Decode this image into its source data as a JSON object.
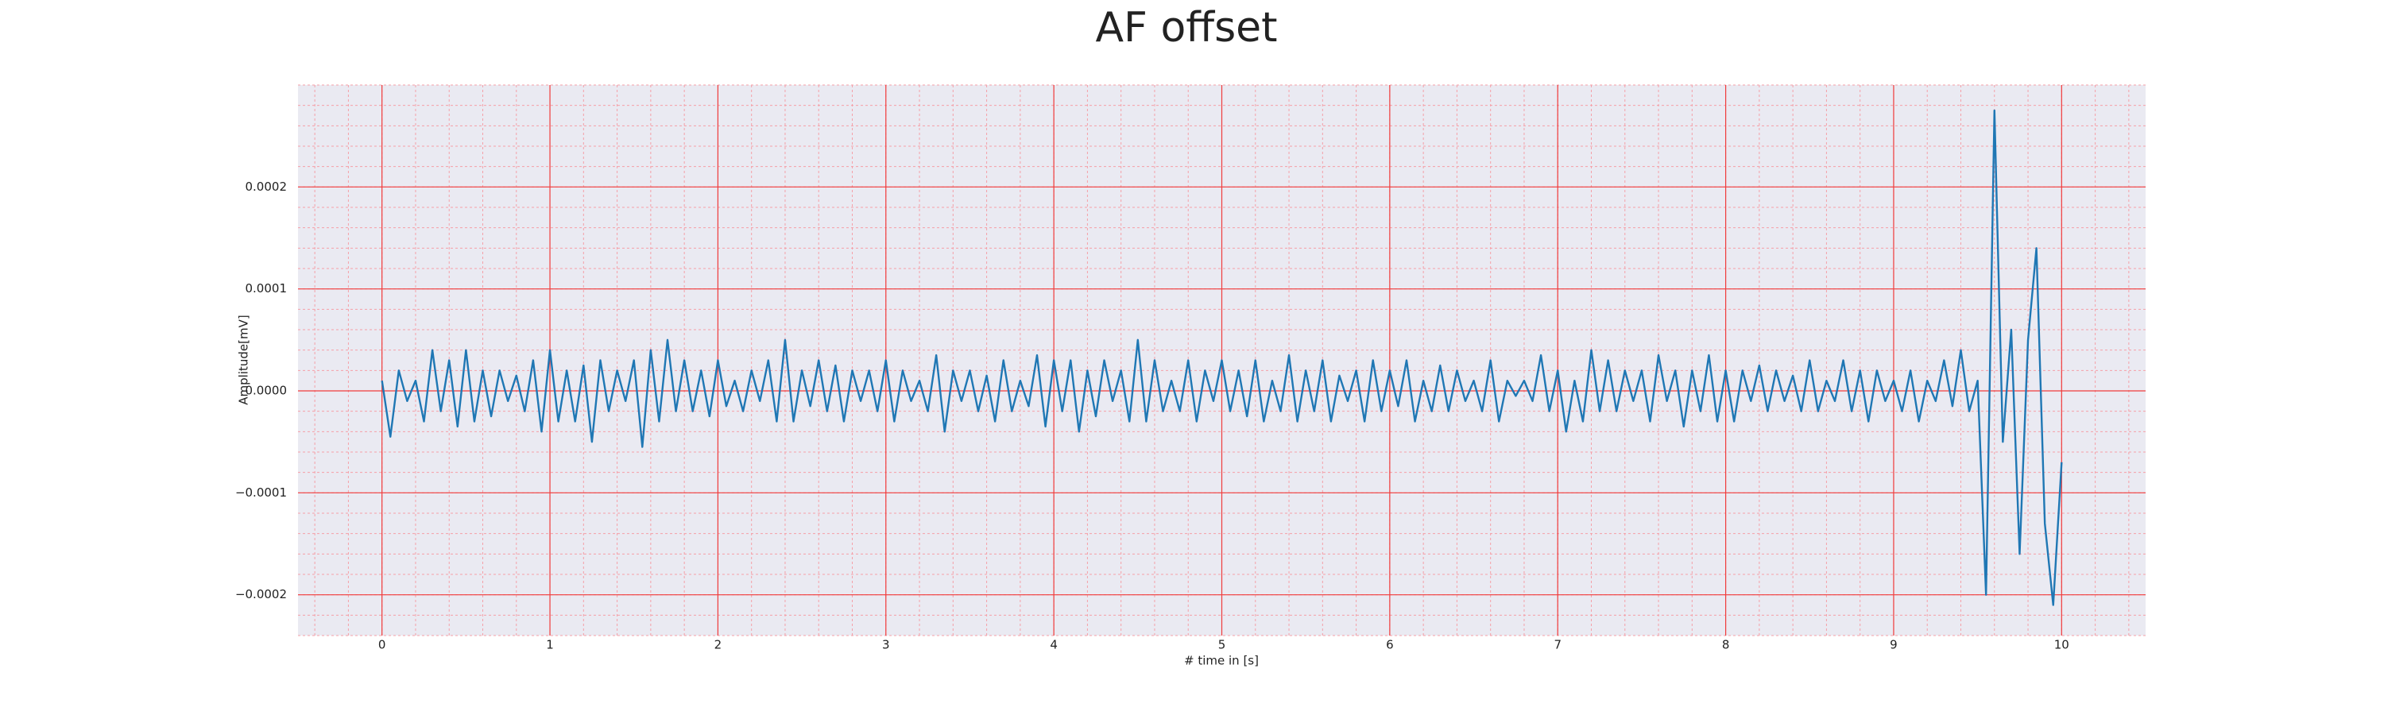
{
  "chart_data": {
    "type": "line",
    "title": "AF offset",
    "xlabel": "# time in [s]",
    "ylabel": "Amplitude[mV]",
    "xlim": [
      -0.5,
      10.5
    ],
    "ylim": [
      -0.00024,
      0.0003
    ],
    "xticks": [
      0,
      1,
      2,
      3,
      4,
      5,
      6,
      7,
      8,
      9,
      10
    ],
    "yticks": [
      {
        "value": -0.0002,
        "label": "−0.0002"
      },
      {
        "value": -0.0001,
        "label": "−0.0001"
      },
      {
        "value": 0,
        "label": "0.0000"
      },
      0.0001,
      0.0002
    ],
    "grid": true,
    "minor_grid": true,
    "x": [
      0,
      0.05,
      0.1,
      0.15,
      0.2,
      0.25,
      0.3,
      0.35,
      0.4,
      0.45,
      0.5,
      0.55,
      0.6,
      0.65,
      0.7,
      0.75,
      0.8,
      0.85,
      0.9,
      0.95,
      1,
      1.05,
      1.1,
      1.15,
      1.2,
      1.25,
      1.3,
      1.35,
      1.4,
      1.45,
      1.5,
      1.55,
      1.6,
      1.65,
      1.7,
      1.75,
      1.8,
      1.85,
      1.9,
      1.95,
      2,
      2.05,
      2.1,
      2.15,
      2.2,
      2.25,
      2.3,
      2.35,
      2.4,
      2.45,
      2.5,
      2.55,
      2.6,
      2.65,
      2.7,
      2.75,
      2.8,
      2.85,
      2.9,
      2.95,
      3,
      3.05,
      3.1,
      3.15,
      3.2,
      3.25,
      3.3,
      3.35,
      3.4,
      3.45,
      3.5,
      3.55,
      3.6,
      3.65,
      3.7,
      3.75,
      3.8,
      3.85,
      3.9,
      3.95,
      4,
      4.05,
      4.1,
      4.15,
      4.2,
      4.25,
      4.3,
      4.35,
      4.4,
      4.45,
      4.5,
      4.55,
      4.6,
      4.65,
      4.7,
      4.75,
      4.8,
      4.85,
      4.9,
      4.95,
      5,
      5.05,
      5.1,
      5.15,
      5.2,
      5.25,
      5.3,
      5.35,
      5.4,
      5.45,
      5.5,
      5.55,
      5.6,
      5.65,
      5.7,
      5.75,
      5.8,
      5.85,
      5.9,
      5.95,
      6,
      6.05,
      6.1,
      6.15,
      6.2,
      6.25,
      6.3,
      6.35,
      6.4,
      6.45,
      6.5,
      6.55,
      6.6,
      6.65,
      6.7,
      6.75,
      6.8,
      6.85,
      6.9,
      6.95,
      7,
      7.05,
      7.1,
      7.15,
      7.2,
      7.25,
      7.3,
      7.35,
      7.4,
      7.45,
      7.5,
      7.55,
      7.6,
      7.65,
      7.7,
      7.75,
      7.8,
      7.85,
      7.9,
      7.95,
      8,
      8.05,
      8.1,
      8.15,
      8.2,
      8.25,
      8.3,
      8.35,
      8.4,
      8.45,
      8.5,
      8.55,
      8.6,
      8.65,
      8.7,
      8.75,
      8.8,
      8.85,
      8.9,
      8.95,
      9,
      9.05,
      9.1,
      9.15,
      9.2,
      9.25,
      9.3,
      9.35,
      9.4,
      9.45,
      9.5,
      9.55,
      9.6,
      9.65,
      9.7,
      9.75,
      9.8,
      9.85,
      9.9,
      9.95,
      10
    ],
    "series": [
      {
        "color": "#1f77b4",
        "values": [
          1e-05,
          -4.5e-05,
          2e-05,
          -1e-05,
          1e-05,
          -3e-05,
          4e-05,
          -2e-05,
          3e-05,
          -3.5e-05,
          4e-05,
          -3e-05,
          2e-05,
          -2.5e-05,
          2e-05,
          -1e-05,
          1.5e-05,
          -2e-05,
          3e-05,
          -4e-05,
          4e-05,
          -3e-05,
          2e-05,
          -3e-05,
          2.5e-05,
          -5e-05,
          3e-05,
          -2e-05,
          2e-05,
          -1e-05,
          3e-05,
          -5.5e-05,
          4e-05,
          -3e-05,
          5e-05,
          -2e-05,
          3e-05,
          -2e-05,
          2e-05,
          -2.5e-05,
          3e-05,
          -1.5e-05,
          1e-05,
          -2e-05,
          2e-05,
          -1e-05,
          3e-05,
          -3e-05,
          5e-05,
          -3e-05,
          2e-05,
          -1.5e-05,
          3e-05,
          -2e-05,
          2.5e-05,
          -3e-05,
          2e-05,
          -1e-05,
          2e-05,
          -2e-05,
          3e-05,
          -3e-05,
          2e-05,
          -1e-05,
          1e-05,
          -2e-05,
          3.5e-05,
          -4e-05,
          2e-05,
          -1e-05,
          2e-05,
          -2e-05,
          1.5e-05,
          -3e-05,
          3e-05,
          -2e-05,
          1e-05,
          -1.5e-05,
          3.5e-05,
          -3.5e-05,
          3e-05,
          -2e-05,
          3e-05,
          -4e-05,
          2e-05,
          -2.5e-05,
          3e-05,
          -1e-05,
          2e-05,
          -3e-05,
          5e-05,
          -3e-05,
          3e-05,
          -2e-05,
          1e-05,
          -2e-05,
          3e-05,
          -3e-05,
          2e-05,
          -1e-05,
          3e-05,
          -2e-05,
          2e-05,
          -2.5e-05,
          3e-05,
          -3e-05,
          1e-05,
          -2e-05,
          3.5e-05,
          -3e-05,
          2e-05,
          -2e-05,
          3e-05,
          -3e-05,
          1.5e-05,
          -1e-05,
          2e-05,
          -3e-05,
          3e-05,
          -2e-05,
          2e-05,
          -1.5e-05,
          3e-05,
          -3e-05,
          1e-05,
          -2e-05,
          2.5e-05,
          -2e-05,
          2e-05,
          -1e-05,
          1e-05,
          -2e-05,
          3e-05,
          -3e-05,
          1e-05,
          -5e-06,
          1e-05,
          -1e-05,
          3.5e-05,
          -2e-05,
          2e-05,
          -4e-05,
          1e-05,
          -3e-05,
          4e-05,
          -2e-05,
          3e-05,
          -2e-05,
          2e-05,
          -1e-05,
          2e-05,
          -3e-05,
          3.5e-05,
          -1e-05,
          2e-05,
          -3.5e-05,
          2e-05,
          -2e-05,
          3.5e-05,
          -3e-05,
          2e-05,
          -3e-05,
          2e-05,
          -1e-05,
          2.5e-05,
          -2e-05,
          2e-05,
          -1e-05,
          1.5e-05,
          -2e-05,
          3e-05,
          -2e-05,
          1e-05,
          -1e-05,
          3e-05,
          -2e-05,
          2e-05,
          -3e-05,
          2e-05,
          -1e-05,
          1e-05,
          -2e-05,
          2e-05,
          -3e-05,
          1e-05,
          -1e-05,
          3e-05,
          -1.5e-05,
          4e-05,
          -2e-05,
          1e-05,
          -0.0002,
          0.000275,
          -5e-05,
          6e-05,
          -0.00016,
          5e-05,
          0.00014,
          -0.00013,
          -0.00021,
          -7e-05
        ]
      }
    ]
  }
}
